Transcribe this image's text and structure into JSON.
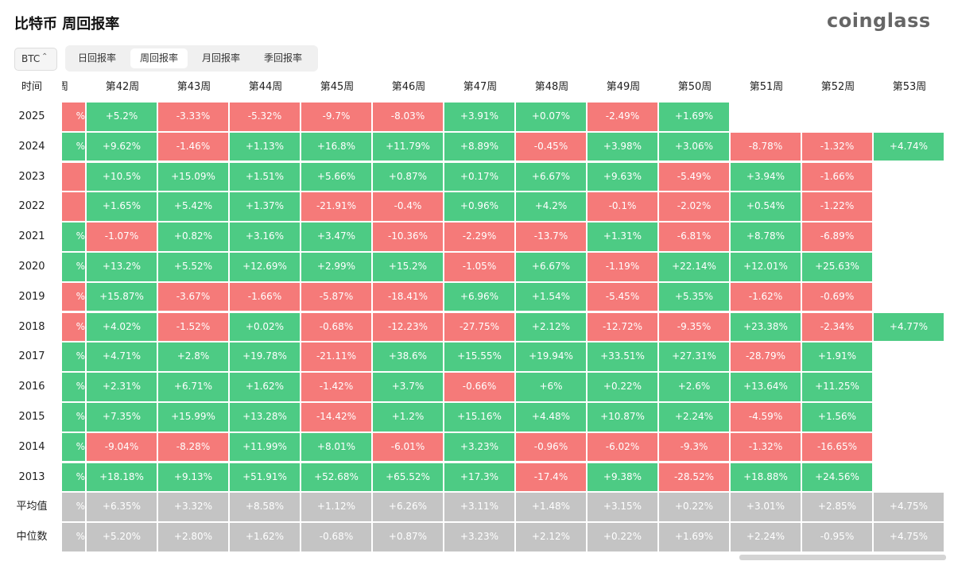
{
  "header": {
    "title": "比特币 周回报率",
    "logo": "coinglass"
  },
  "controls": {
    "asset": "BTC",
    "tabs": [
      "日回报率",
      "周回报率",
      "月回报率",
      "季回报率"
    ],
    "active_tab": 1
  },
  "table": {
    "corner": "时间",
    "clipped_header": "周",
    "columns": [
      "第42周",
      "第43周",
      "第44周",
      "第45周",
      "第46周",
      "第47周",
      "第48周",
      "第49周",
      "第50周",
      "第51周",
      "第52周",
      "第53周"
    ],
    "rows": [
      {
        "label": "2025",
        "clipped": "%",
        "clipped_tone": "down",
        "cells": [
          "+5.2%",
          "-3.33%",
          "-5.32%",
          "-9.7%",
          "-8.03%",
          "+3.91%",
          "+0.07%",
          "-2.49%",
          "+1.69%",
          null,
          null,
          null
        ]
      },
      {
        "label": "2024",
        "clipped": "%",
        "clipped_tone": "up",
        "cells": [
          "+9.62%",
          "-1.46%",
          "+1.13%",
          "+16.8%",
          "+11.79%",
          "+8.89%",
          "-0.45%",
          "+3.98%",
          "+3.06%",
          "-8.78%",
          "-1.32%",
          "+4.74%"
        ]
      },
      {
        "label": "2023",
        "clipped": null,
        "clipped_tone": "down",
        "cells": [
          "+10.5%",
          "+15.09%",
          "+1.51%",
          "+5.66%",
          "+0.87%",
          "+0.17%",
          "+6.67%",
          "+9.63%",
          "-5.49%",
          "+3.94%",
          "-1.66%",
          null
        ]
      },
      {
        "label": "2022",
        "clipped": null,
        "clipped_tone": "down",
        "cells": [
          "+1.65%",
          "+5.42%",
          "+1.37%",
          "-21.91%",
          "-0.4%",
          "+0.96%",
          "+4.2%",
          "-0.1%",
          "-2.02%",
          "+0.54%",
          "-1.22%",
          null
        ]
      },
      {
        "label": "2021",
        "clipped": "%",
        "clipped_tone": "up",
        "cells": [
          "-1.07%",
          "+0.82%",
          "+3.16%",
          "+3.47%",
          "-10.36%",
          "-2.29%",
          "-13.7%",
          "+1.31%",
          "-6.81%",
          "+8.78%",
          "-6.89%",
          null
        ]
      },
      {
        "label": "2020",
        "clipped": "%",
        "clipped_tone": "up",
        "cells": [
          "+13.2%",
          "+5.52%",
          "+12.69%",
          "+2.99%",
          "+15.2%",
          "-1.05%",
          "+6.67%",
          "-1.19%",
          "+22.14%",
          "+12.01%",
          "+25.63%",
          null
        ]
      },
      {
        "label": "2019",
        "clipped": "%",
        "clipped_tone": "down",
        "cells": [
          "+15.87%",
          "-3.67%",
          "-1.66%",
          "-5.87%",
          "-18.41%",
          "+6.96%",
          "+1.54%",
          "-5.45%",
          "+5.35%",
          "-1.62%",
          "-0.69%",
          null
        ]
      },
      {
        "label": "2018",
        "clipped": "%",
        "clipped_tone": "down",
        "cells": [
          "+4.02%",
          "-1.52%",
          "+0.02%",
          "-0.68%",
          "-12.23%",
          "-27.75%",
          "+2.12%",
          "-12.72%",
          "-9.35%",
          "+23.38%",
          "-2.34%",
          "+4.77%"
        ]
      },
      {
        "label": "2017",
        "clipped": "%",
        "clipped_tone": "up",
        "cells": [
          "+4.71%",
          "+2.8%",
          "+19.78%",
          "-21.11%",
          "+38.6%",
          "+15.55%",
          "+19.94%",
          "+33.51%",
          "+27.31%",
          "-28.79%",
          "+1.91%",
          null
        ]
      },
      {
        "label": "2016",
        "clipped": "%",
        "clipped_tone": "up",
        "cells": [
          "+2.31%",
          "+6.71%",
          "+1.62%",
          "-1.42%",
          "+3.7%",
          "-0.66%",
          "+6%",
          "+0.22%",
          "+2.6%",
          "+13.64%",
          "+11.25%",
          null
        ]
      },
      {
        "label": "2015",
        "clipped": "%",
        "clipped_tone": "up",
        "cells": [
          "+7.35%",
          "+15.99%",
          "+13.28%",
          "-14.42%",
          "+1.2%",
          "+15.16%",
          "+4.48%",
          "+10.87%",
          "+2.24%",
          "-4.59%",
          "+1.56%",
          null
        ]
      },
      {
        "label": "2014",
        "clipped": "%",
        "clipped_tone": "up",
        "cells": [
          "-9.04%",
          "-8.28%",
          "+11.99%",
          "+8.01%",
          "-6.01%",
          "+3.23%",
          "-0.96%",
          "-6.02%",
          "-9.3%",
          "-1.32%",
          "-16.65%",
          null
        ]
      },
      {
        "label": "2013",
        "clipped": "%",
        "clipped_tone": "up",
        "cells": [
          "+18.18%",
          "+9.13%",
          "+51.91%",
          "+52.68%",
          "+65.52%",
          "+17.3%",
          "-17.4%",
          "+9.38%",
          "-28.52%",
          "+18.88%",
          "+24.56%",
          null
        ]
      }
    ],
    "summary_rows": [
      {
        "label": "平均值",
        "clipped": "%",
        "cells": [
          "+6.35%",
          "+3.32%",
          "+8.58%",
          "+1.12%",
          "+6.26%",
          "+3.11%",
          "+1.48%",
          "+3.15%",
          "+0.22%",
          "+3.01%",
          "+2.85%",
          "+4.75%"
        ]
      },
      {
        "label": "中位数",
        "clipped": "%",
        "cells": [
          "+5.20%",
          "+2.80%",
          "+1.62%",
          "-0.68%",
          "+0.87%",
          "+3.23%",
          "+2.12%",
          "+0.22%",
          "+1.69%",
          "+2.24%",
          "-0.95%",
          "+4.75%"
        ]
      }
    ]
  }
}
